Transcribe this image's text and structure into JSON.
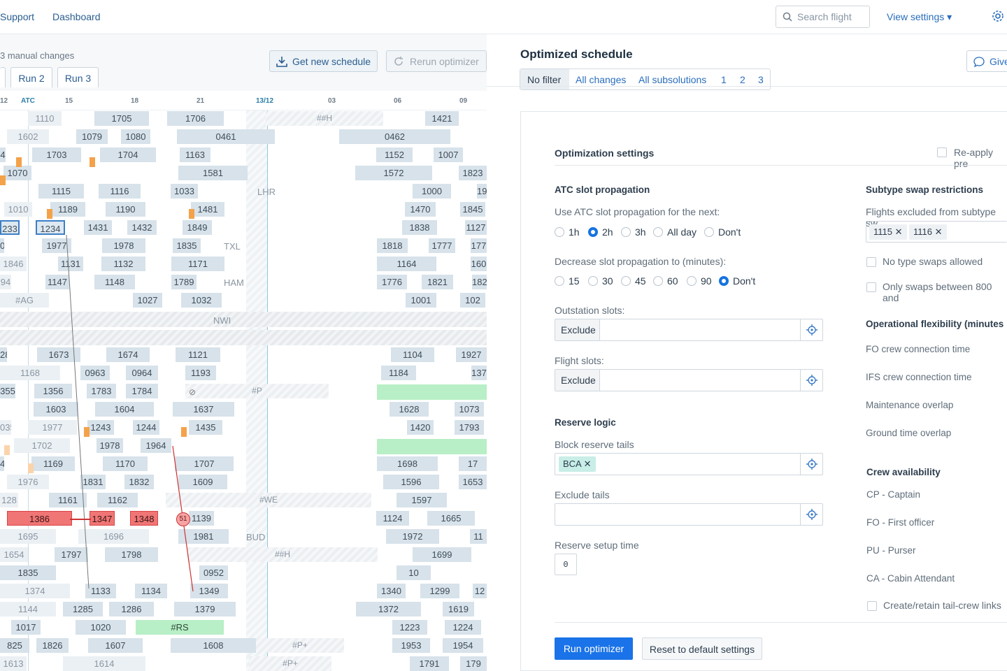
{
  "nav": {
    "support": "Support",
    "dashboard": "Dashboard",
    "search_placeholder": "Search flight",
    "view_settings": "View settings ▾"
  },
  "left": {
    "manual_changes": "3 manual changes",
    "get_schedule": "Get new schedule",
    "rerun": "Rerun optimizer",
    "runs": [
      "",
      "Run 2",
      "Run 3"
    ]
  },
  "gantt": {
    "ticks": [
      "12",
      "ATC",
      "15",
      "18",
      "21",
      "13/12",
      "03",
      "06",
      "09"
    ],
    "bars": [
      [
        "1110",
        0,
        "l"
      ],
      [
        "1705",
        0,
        ""
      ],
      [
        "1706",
        0,
        ""
      ],
      [
        "##H",
        0,
        "h"
      ],
      [
        "1421",
        0,
        ""
      ],
      [
        "1602",
        1,
        "l"
      ],
      [
        "1079",
        1,
        ""
      ],
      [
        "1080",
        1,
        ""
      ],
      [
        "0461",
        1,
        ""
      ],
      [
        "0462",
        1,
        ""
      ],
      [
        "4",
        2,
        ""
      ],
      [
        "1703",
        2,
        ""
      ],
      [
        "1704",
        2,
        ""
      ],
      [
        "1163",
        2,
        ""
      ],
      [
        "1152",
        2,
        ""
      ],
      [
        "1007",
        2,
        ""
      ],
      [
        "1070",
        3,
        ""
      ],
      [
        "1581",
        3,
        ""
      ],
      [
        "1572",
        3,
        ""
      ],
      [
        "1823",
        3,
        ""
      ],
      [
        "1115",
        4,
        ""
      ],
      [
        "1116",
        4,
        ""
      ],
      [
        "1033",
        4,
        ""
      ],
      [
        "1000",
        4,
        ""
      ],
      [
        "19",
        4,
        ""
      ],
      [
        "1010",
        5,
        "l"
      ],
      [
        "1189",
        5,
        ""
      ],
      [
        "1190",
        5,
        ""
      ],
      [
        "1481",
        5,
        ""
      ],
      [
        "1470",
        5,
        ""
      ],
      [
        "1845",
        5,
        ""
      ],
      [
        "233",
        6,
        "s"
      ],
      [
        "1234",
        6,
        "s"
      ],
      [
        "1431",
        6,
        ""
      ],
      [
        "1432",
        6,
        ""
      ],
      [
        "1849",
        6,
        ""
      ],
      [
        "1838",
        6,
        ""
      ],
      [
        "1127",
        6,
        ""
      ],
      [
        "0",
        7,
        ""
      ],
      [
        "1977",
        7,
        ""
      ],
      [
        "1978",
        7,
        ""
      ],
      [
        "1835",
        7,
        ""
      ],
      [
        "1818",
        7,
        ""
      ],
      [
        "1777",
        7,
        ""
      ],
      [
        "177",
        7,
        ""
      ],
      [
        "1846",
        8,
        "l"
      ],
      [
        "1131",
        8,
        ""
      ],
      [
        "1132",
        8,
        ""
      ],
      [
        "1171",
        8,
        ""
      ],
      [
        "1164",
        8,
        ""
      ],
      [
        "160",
        8,
        ""
      ],
      [
        "94",
        9,
        "l"
      ],
      [
        "1147",
        9,
        ""
      ],
      [
        "1148",
        9,
        ""
      ],
      [
        "1789",
        9,
        ""
      ],
      [
        "1776",
        9,
        ""
      ],
      [
        "1821",
        9,
        ""
      ],
      [
        "182",
        9,
        ""
      ],
      [
        "#AG",
        10,
        "l"
      ],
      [
        "1027",
        10,
        ""
      ],
      [
        "1032",
        10,
        ""
      ],
      [
        "1001",
        10,
        ""
      ],
      [
        "102",
        10,
        ""
      ],
      [
        "28",
        13,
        ""
      ],
      [
        "1673",
        13,
        ""
      ],
      [
        "1674",
        13,
        ""
      ],
      [
        "1121",
        13,
        ""
      ],
      [
        "1104",
        13,
        ""
      ],
      [
        "1927",
        13,
        ""
      ],
      [
        "1168",
        14,
        "l"
      ],
      [
        "0963",
        14,
        ""
      ],
      [
        "0964",
        14,
        ""
      ],
      [
        "1193",
        14,
        ""
      ],
      [
        "1184",
        14,
        ""
      ],
      [
        "137",
        14,
        ""
      ],
      [
        "355",
        15,
        ""
      ],
      [
        "1356",
        15,
        ""
      ],
      [
        "1783",
        15,
        ""
      ],
      [
        "1784",
        15,
        ""
      ],
      [
        "#P",
        15,
        "h"
      ],
      [
        "1603",
        16,
        ""
      ],
      [
        "1604",
        16,
        ""
      ],
      [
        "1637",
        16,
        ""
      ],
      [
        "1628",
        16,
        ""
      ],
      [
        "1073",
        16,
        ""
      ],
      [
        "035",
        17,
        "l"
      ],
      [
        "1977",
        17,
        "l"
      ],
      [
        "1243",
        17,
        ""
      ],
      [
        "1244",
        17,
        ""
      ],
      [
        "1435",
        17,
        ""
      ],
      [
        "1420",
        17,
        ""
      ],
      [
        "1793",
        17,
        ""
      ],
      [
        "1702",
        18,
        "l"
      ],
      [
        "1978",
        18,
        ""
      ],
      [
        "1964",
        18,
        ""
      ],
      [
        "4",
        19,
        ""
      ],
      [
        "1169",
        19,
        ""
      ],
      [
        "1170",
        19,
        ""
      ],
      [
        "1707",
        19,
        ""
      ],
      [
        "1698",
        19,
        ""
      ],
      [
        "17",
        19,
        ""
      ],
      [
        "1976",
        20,
        "l"
      ],
      [
        "1831",
        20,
        ""
      ],
      [
        "1832",
        20,
        ""
      ],
      [
        "1609",
        20,
        ""
      ],
      [
        "1596",
        20,
        ""
      ],
      [
        "1653",
        20,
        ""
      ],
      [
        "128",
        21,
        "l"
      ],
      [
        "1161",
        21,
        ""
      ],
      [
        "1162",
        21,
        ""
      ],
      [
        "#WE",
        21,
        "h"
      ],
      [
        "1597",
        21,
        ""
      ],
      [
        "1386",
        22,
        "r"
      ],
      [
        "1347",
        22,
        "r"
      ],
      [
        "1348",
        22,
        "r"
      ],
      [
        "1139",
        22,
        ""
      ],
      [
        "1124",
        22,
        ""
      ],
      [
        "1665",
        22,
        ""
      ],
      [
        "1695",
        23,
        "l"
      ],
      [
        "1696",
        23,
        "l"
      ],
      [
        "1981",
        23,
        ""
      ],
      [
        "1972",
        23,
        ""
      ],
      [
        "11",
        23,
        ""
      ],
      [
        "1654",
        24,
        "l"
      ],
      [
        "1797",
        24,
        ""
      ],
      [
        "1798",
        24,
        ""
      ],
      [
        "##H",
        24,
        "h"
      ],
      [
        "1699",
        24,
        ""
      ],
      [
        "1835",
        25,
        ""
      ],
      [
        "0952",
        25,
        ""
      ],
      [
        "10",
        25,
        ""
      ],
      [
        "1374",
        26,
        "l"
      ],
      [
        "1133",
        26,
        ""
      ],
      [
        "1134",
        26,
        ""
      ],
      [
        "1349",
        26,
        ""
      ],
      [
        "1340",
        26,
        ""
      ],
      [
        "1299",
        26,
        ""
      ],
      [
        "12",
        26,
        ""
      ],
      [
        "1144",
        27,
        "l"
      ],
      [
        "1285",
        27,
        ""
      ],
      [
        "1286",
        27,
        ""
      ],
      [
        "1379",
        27,
        ""
      ],
      [
        "1372",
        27,
        ""
      ],
      [
        "1619",
        27,
        ""
      ],
      [
        "1017",
        28,
        ""
      ],
      [
        "1020",
        28,
        ""
      ],
      [
        "#RS",
        28,
        "g"
      ],
      [
        "1223",
        28,
        ""
      ],
      [
        "1224",
        28,
        ""
      ],
      [
        "825",
        29,
        ""
      ],
      [
        "1826",
        29,
        ""
      ],
      [
        "1607",
        29,
        ""
      ],
      [
        "1608",
        29,
        ""
      ],
      [
        "#P+",
        29,
        "h"
      ],
      [
        "1953",
        29,
        ""
      ],
      [
        "1954",
        29,
        ""
      ],
      [
        "1613",
        30,
        "l"
      ],
      [
        "1614",
        30,
        "l"
      ],
      [
        "#P+",
        30,
        "h"
      ],
      [
        "1791",
        30,
        ""
      ],
      [
        "179",
        30,
        ""
      ]
    ],
    "station_labels": [
      "LHR",
      "TXL",
      "HAM",
      "NWI",
      "BUD"
    ],
    "badge": "51"
  },
  "right": {
    "title": "Optimized schedule",
    "filters": [
      "No filter",
      "All changes",
      "All subsolutions",
      "1",
      "2",
      "3"
    ],
    "give_feedback": "Give",
    "settings_title": "Optimization settings",
    "reapply": "Re-apply pre",
    "atc_title": "ATC slot propagation",
    "atc_desc": "Use ATC slot propagation for the next:",
    "atc_options": [
      "1h",
      "2h",
      "3h",
      "All day",
      "Don't"
    ],
    "atc_selected": "2h",
    "decrease_desc": "Decrease slot propagation to (minutes):",
    "decrease_options": [
      "15",
      "30",
      "45",
      "60",
      "90",
      "Don't"
    ],
    "decrease_selected": "Don't",
    "outstation": "Outstation slots:",
    "flight_slots": "Flight slots:",
    "exclude": "Exclude",
    "reserve_title": "Reserve logic",
    "block_tails": "Block reserve tails",
    "bca_chip": "BCA",
    "exclude_tails": "Exclude tails",
    "setup_time": "Reserve setup time",
    "setup_value": "0",
    "subtype_title": "Subtype swap restrictions",
    "excluded_flights": "Flights excluded from subtype sw",
    "excluded_chips": [
      "1115",
      "1116"
    ],
    "no_type_swaps": "No type swaps allowed",
    "only_swaps": "Only swaps between 800 and",
    "flex_title": "Operational flexibility (minutes",
    "flex_items": [
      "FO crew connection time",
      "IFS crew connection time",
      "Maintenance overlap",
      "Ground time overlap"
    ],
    "crew_title": "Crew availability",
    "crew_items": [
      "CP - Captain",
      "FO - First officer",
      "PU - Purser",
      "CA - Cabin Attendant"
    ],
    "tail_crew": "Create/retain tail-crew links",
    "run_btn": "Run optimizer",
    "reset_btn": "Reset to default settings"
  },
  "colors": {
    "accent": "#1a73e8",
    "conflict": "#f07575",
    "orange": "#f4a24a",
    "green": "#b8efc6"
  }
}
